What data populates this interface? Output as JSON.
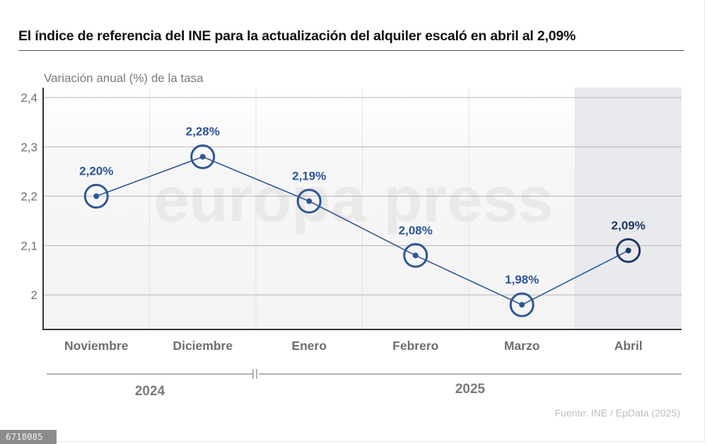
{
  "header": {
    "title": "El índice de referencia del INE para la actualización del alquiler escaló en abril al 2,09%",
    "subtitle": "Variación anual (%) de la tasa"
  },
  "footer": {
    "source": "Fuente: INE / EpData (2025)",
    "image_id": "6718085"
  },
  "watermark": "europa press",
  "colors": {
    "series": "#2f5597",
    "highlight": "#1f3864",
    "highlight_band": "#e8eaee",
    "grid": "#b5b5b5",
    "axis": "#333333"
  },
  "chart_data": {
    "type": "line",
    "title": "El índice de referencia del INE para la actualización del alquiler escaló en abril al 2,09%",
    "ylabel": "Variación anual (%) de la tasa",
    "xlabel": "",
    "categories": [
      "Noviembre",
      "Diciembre",
      "Enero",
      "Febrero",
      "Marzo",
      "Abril"
    ],
    "series": [
      {
        "name": "Variación anual (%)",
        "values": [
          2.2,
          2.28,
          2.19,
          2.08,
          1.98,
          2.09
        ],
        "data_labels": [
          "2,20%",
          "2,28%",
          "2,19%",
          "2,08%",
          "1,98%",
          "2,09%"
        ]
      }
    ],
    "highlighted_category": "Abril",
    "ylim": [
      1.93,
      2.42
    ],
    "yticks": [
      2,
      2.1,
      2.2,
      2.3,
      2.4
    ],
    "ytick_labels": [
      "2",
      "2,1",
      "2,2",
      "2,3",
      "2,4"
    ],
    "year_groups": [
      {
        "label": "2024",
        "categories": [
          "Noviembre",
          "Diciembre"
        ]
      },
      {
        "label": "2025",
        "categories": [
          "Enero",
          "Febrero",
          "Marzo",
          "Abril"
        ]
      }
    ],
    "grid": true,
    "legend": "none"
  }
}
